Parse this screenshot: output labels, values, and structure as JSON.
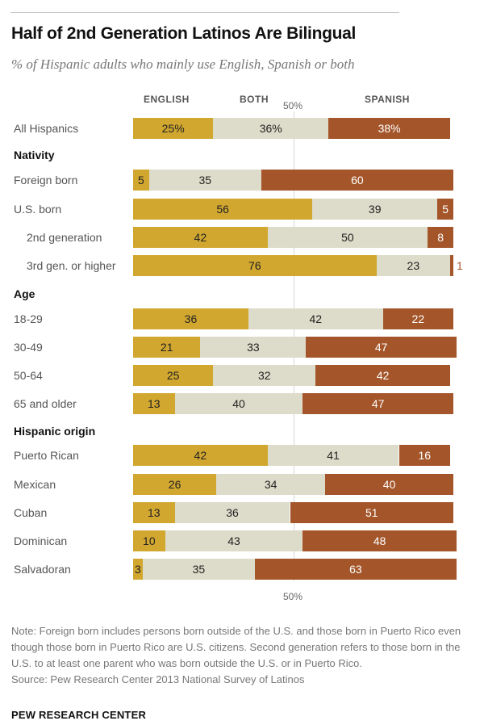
{
  "header": {
    "title": "Half of 2nd Generation Latinos Are Bilingual",
    "subtitle": "% of Hispanic adults who mainly use English, Spanish or both"
  },
  "footer": {
    "note": "Note: Foreign born includes persons born outside of the U.S. and those born in Puerto Rico even though those born in Puerto Rico are U.S. citizens. Second generation refers to those born in the U.S. to at least one parent who was born outside the U.S. or in Puerto Rico.",
    "source": "Source: Pew Research Center 2013 National Survey of Latinos",
    "brand": "PEW RESEARCH CENTER"
  },
  "chart_data": {
    "type": "bar",
    "orientation": "horizontal-stacked",
    "title": "Half of 2nd Generation Latinos Are Bilingual",
    "subtitle": "% of Hispanic adults who mainly use English, Spanish or both",
    "xlabel": "",
    "ylabel": "",
    "xlim": [
      0,
      100
    ],
    "reference_line": {
      "value": 50,
      "label": "50%"
    },
    "legend": {
      "placement": "top",
      "entries": [
        "ENGLISH",
        "BOTH",
        "SPANISH"
      ]
    },
    "colors": {
      "English": "#d1a730",
      "Both": "#dddbc9",
      "Spanish": "#a4562a"
    },
    "series_names": [
      "English",
      "Both",
      "Spanish"
    ],
    "rows": [
      {
        "type": "row",
        "label": "All Hispanics",
        "indent": false,
        "values": [
          25,
          36,
          38
        ],
        "labels": [
          "25%",
          "36%",
          "38%"
        ]
      },
      {
        "type": "section",
        "label": "Nativity"
      },
      {
        "type": "row",
        "label": "Foreign born",
        "indent": false,
        "values": [
          5,
          35,
          60
        ],
        "labels": [
          "5",
          "35",
          "60"
        ]
      },
      {
        "type": "row",
        "label": "U.S. born",
        "indent": false,
        "values": [
          56,
          39,
          5
        ],
        "labels": [
          "56",
          "39",
          "5"
        ]
      },
      {
        "type": "row",
        "label": "2nd generation",
        "indent": true,
        "values": [
          42,
          50,
          8
        ],
        "labels": [
          "42",
          "50",
          "8"
        ]
      },
      {
        "type": "row",
        "label": "3rd gen. or higher",
        "indent": true,
        "values": [
          76,
          23,
          1
        ],
        "labels": [
          "76",
          "23",
          "1"
        ]
      },
      {
        "type": "section",
        "label": "Age"
      },
      {
        "type": "row",
        "label": "18-29",
        "indent": false,
        "values": [
          36,
          42,
          22
        ],
        "labels": [
          "36",
          "42",
          "22"
        ]
      },
      {
        "type": "row",
        "label": "30-49",
        "indent": false,
        "values": [
          21,
          33,
          47
        ],
        "labels": [
          "21",
          "33",
          "47"
        ]
      },
      {
        "type": "row",
        "label": "50-64",
        "indent": false,
        "values": [
          25,
          32,
          42
        ],
        "labels": [
          "25",
          "32",
          "42"
        ]
      },
      {
        "type": "row",
        "label": "65 and older",
        "indent": false,
        "values": [
          13,
          40,
          47
        ],
        "labels": [
          "13",
          "40",
          "47"
        ]
      },
      {
        "type": "section",
        "label": "Hispanic origin"
      },
      {
        "type": "row",
        "label": "Puerto Rican",
        "indent": false,
        "values": [
          42,
          41,
          16
        ],
        "labels": [
          "42",
          "41",
          "16"
        ]
      },
      {
        "type": "row",
        "label": "Mexican",
        "indent": false,
        "values": [
          26,
          34,
          40
        ],
        "labels": [
          "26",
          "34",
          "40"
        ]
      },
      {
        "type": "row",
        "label": "Cuban",
        "indent": false,
        "values": [
          13,
          36,
          51
        ],
        "labels": [
          "13",
          "36",
          "51"
        ]
      },
      {
        "type": "row",
        "label": "Dominican",
        "indent": false,
        "values": [
          10,
          43,
          48
        ],
        "labels": [
          "10",
          "43",
          "48"
        ]
      },
      {
        "type": "row",
        "label": "Salvadoran",
        "indent": false,
        "values": [
          3,
          35,
          63
        ],
        "labels": [
          "3",
          "35",
          "63"
        ]
      }
    ]
  }
}
